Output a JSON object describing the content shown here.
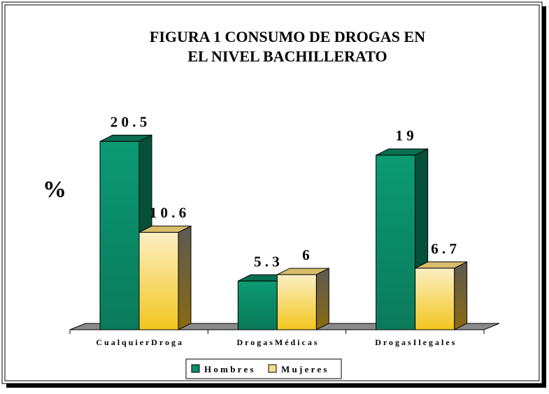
{
  "chart_data": {
    "type": "bar",
    "title_lines": [
      "FIGURA 1 CONSUMO DE DROGAS EN",
      "EL NIVEL BACHILLERATO"
    ],
    "ylabel": "%",
    "xlabel": "",
    "categories": [
      "Cualquier Droga",
      "Drogas Médicas",
      "Drogas Ilegales"
    ],
    "categories_display": [
      "C u a l q u i e r   D r o g a",
      "D r o g a s   M é d i c a s",
      "D r o g a s   I l e g a l e s"
    ],
    "series": [
      {
        "name": "Hombres",
        "name_display": "H o m b r e s",
        "values": [
          20.5,
          5.3,
          19
        ],
        "value_labels": [
          "2 0 . 5",
          "5 . 3",
          "1 9"
        ],
        "color_front": "#0d8d68",
        "color_side": "#06503a",
        "color_top": "#0a6e52"
      },
      {
        "name": "Mujeres",
        "name_display": "M u j e r e s",
        "values": [
          10.6,
          6,
          6.7
        ],
        "value_labels": [
          "1 0 . 6",
          "6",
          "6 . 7"
        ],
        "color_front": "#f6dc8a",
        "color_side": "#7a6a3a",
        "color_top": "#d8be6a"
      }
    ],
    "ylim": [
      0,
      25
    ],
    "grid": false,
    "legend_position": "bottom-center",
    "chart_style": "3d-clustered-column"
  }
}
